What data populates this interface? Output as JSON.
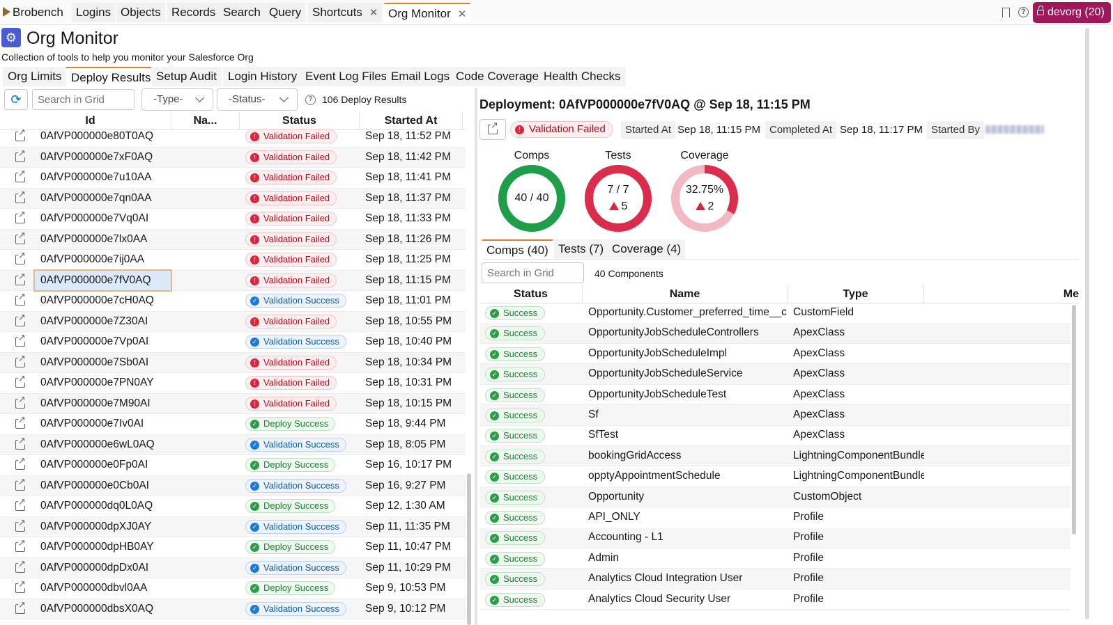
{
  "nav": {
    "brand": "Brobench",
    "tabs": [
      "Logins",
      "Objects",
      "Records",
      "Search",
      "Query",
      "Shortcuts",
      "Org Monitor"
    ],
    "org_button": "devorg (20)"
  },
  "header": {
    "title": "Org Monitor",
    "subtitle": "Collection of tools to help you monitor your Salesforce Org"
  },
  "subtabs": [
    "Org Limits",
    "Deploy Results",
    "Setup Audit",
    "Login History",
    "Event Log Files",
    "Email Logs",
    "Code Coverage",
    "Health Checks"
  ],
  "left": {
    "search_placeholder": "Search in Grid",
    "type_filter": "-Type-",
    "status_filter": "-Status-",
    "result_count": "106 Deploy Results",
    "columns": [
      "Id",
      "Na...",
      "Status",
      "Started At"
    ],
    "rows": [
      {
        "id": "0AfVP000000e80T0AQ",
        "status": "Validation Failed",
        "kind": "fail",
        "started": "Sep 18, 11:52 PM"
      },
      {
        "id": "0AfVP000000e7xF0AQ",
        "status": "Validation Failed",
        "kind": "fail",
        "started": "Sep 18, 11:42 PM"
      },
      {
        "id": "0AfVP000000e7u10AA",
        "status": "Validation Failed",
        "kind": "fail",
        "started": "Sep 18, 11:41 PM"
      },
      {
        "id": "0AfVP000000e7qn0AA",
        "status": "Validation Failed",
        "kind": "fail",
        "started": "Sep 18, 11:37 PM"
      },
      {
        "id": "0AfVP000000e7Vq0AI",
        "status": "Validation Failed",
        "kind": "fail",
        "started": "Sep 18, 11:33 PM"
      },
      {
        "id": "0AfVP000000e7lx0AA",
        "status": "Validation Failed",
        "kind": "fail",
        "started": "Sep 18, 11:26 PM"
      },
      {
        "id": "0AfVP000000e7ij0AA",
        "status": "Validation Failed",
        "kind": "fail",
        "started": "Sep 18, 11:25 PM"
      },
      {
        "id": "0AfVP000000e7fV0AQ",
        "status": "Validation Failed",
        "kind": "fail",
        "started": "Sep 18, 11:15 PM",
        "selected": true
      },
      {
        "id": "0AfVP000000e7cH0AQ",
        "status": "Validation Success",
        "kind": "vsucc",
        "started": "Sep 18, 11:01 PM"
      },
      {
        "id": "0AfVP000000e7Z30AI",
        "status": "Validation Failed",
        "kind": "fail",
        "started": "Sep 18, 10:55 PM"
      },
      {
        "id": "0AfVP000000e7Vp0AI",
        "status": "Validation Success",
        "kind": "vsucc",
        "started": "Sep 18, 10:40 PM"
      },
      {
        "id": "0AfVP000000e7Sb0AI",
        "status": "Validation Failed",
        "kind": "fail",
        "started": "Sep 18, 10:34 PM"
      },
      {
        "id": "0AfVP000000e7PN0AY",
        "status": "Validation Failed",
        "kind": "fail",
        "started": "Sep 18, 10:31 PM"
      },
      {
        "id": "0AfVP000000e7M90AI",
        "status": "Validation Failed",
        "kind": "fail",
        "started": "Sep 18, 10:15 PM"
      },
      {
        "id": "0AfVP000000e7Iv0AI",
        "status": "Deploy Success",
        "kind": "dsucc",
        "started": "Sep 18, 9:44 PM"
      },
      {
        "id": "0AfVP000000e6wL0AQ",
        "status": "Validation Success",
        "kind": "vsucc",
        "started": "Sep 18, 8:05 PM"
      },
      {
        "id": "0AfVP000000e0Fp0AI",
        "status": "Deploy Success",
        "kind": "dsucc",
        "started": "Sep 16, 10:17 PM"
      },
      {
        "id": "0AfVP000000e0Cb0AI",
        "status": "Validation Success",
        "kind": "vsucc",
        "started": "Sep 16, 9:27 PM"
      },
      {
        "id": "0AfVP000000dq0L0AQ",
        "status": "Deploy Success",
        "kind": "dsucc",
        "started": "Sep 12, 1:30 AM"
      },
      {
        "id": "0AfVP000000dpXJ0AY",
        "status": "Validation Success",
        "kind": "vsucc",
        "started": "Sep 11, 11:35 PM"
      },
      {
        "id": "0AfVP000000dpHB0AY",
        "status": "Deploy Success",
        "kind": "dsucc",
        "started": "Sep 11, 10:47 PM"
      },
      {
        "id": "0AfVP000000dpDx0AI",
        "status": "Validation Success",
        "kind": "vsucc",
        "started": "Sep 11, 10:29 PM"
      },
      {
        "id": "0AfVP000000dbvl0AA",
        "status": "Deploy Success",
        "kind": "dsucc",
        "started": "Sep 9, 10:53 PM"
      },
      {
        "id": "0AfVP000000dbsX0AQ",
        "status": "Validation Success",
        "kind": "vsucc",
        "started": "Sep 9, 10:12 PM"
      }
    ]
  },
  "detail": {
    "title": "Deployment: 0AfVP000000e7fV0AQ @ Sep 18, 11:15 PM",
    "status": "Validation Failed",
    "started_label": "Started At",
    "started_value": "Sep 18, 11:15 PM",
    "completed_label": "Completed At",
    "completed_value": "Sep 18, 11:17 PM",
    "started_by_label": "Started By",
    "gauges": [
      {
        "label": "Comps",
        "value": "40 / 40",
        "warn": "",
        "fraction": 1.0,
        "color": "#1f9e4a",
        "track": "#1f9e4a"
      },
      {
        "label": "Tests",
        "value": "7 / 7",
        "warn": "5",
        "fraction": 1.0,
        "color": "#d92d4b",
        "track": "#d92d4b"
      },
      {
        "label": "Coverage",
        "value": "32.75%",
        "warn": "2",
        "fraction": 0.3275,
        "color": "#d92d4b",
        "track": "#f2b8c3"
      }
    ],
    "tabs": [
      "Comps (40)",
      "Tests (7)",
      "Coverage (4)"
    ],
    "search_placeholder": "Search in Grid",
    "count": "40 Components",
    "columns": [
      "Status",
      "Name",
      "Type",
      "Me"
    ],
    "components": [
      {
        "status": "Success",
        "name": "Opportunity.Customer_preferred_time__c",
        "type": "CustomField"
      },
      {
        "status": "Success",
        "name": "OpportunityJobScheduleControllers",
        "type": "ApexClass"
      },
      {
        "status": "Success",
        "name": "OpportunityJobScheduleImpl",
        "type": "ApexClass"
      },
      {
        "status": "Success",
        "name": "OpportunityJobScheduleService",
        "type": "ApexClass"
      },
      {
        "status": "Success",
        "name": "OpportunityJobScheduleTest",
        "type": "ApexClass"
      },
      {
        "status": "Success",
        "name": "Sf",
        "type": "ApexClass"
      },
      {
        "status": "Success",
        "name": "SfTest",
        "type": "ApexClass"
      },
      {
        "status": "Success",
        "name": "bookingGridAccess",
        "type": "LightningComponentBundle"
      },
      {
        "status": "Success",
        "name": "opptyAppointmentSchedule",
        "type": "LightningComponentBundle"
      },
      {
        "status": "Success",
        "name": "Opportunity",
        "type": "CustomObject"
      },
      {
        "status": "Success",
        "name": "API_ONLY",
        "type": "Profile"
      },
      {
        "status": "Success",
        "name": "Accounting - L1",
        "type": "Profile"
      },
      {
        "status": "Success",
        "name": "Admin",
        "type": "Profile"
      },
      {
        "status": "Success",
        "name": "Analytics Cloud Integration User",
        "type": "Profile"
      },
      {
        "status": "Success",
        "name": "Analytics Cloud Security User",
        "type": "Profile"
      }
    ]
  }
}
